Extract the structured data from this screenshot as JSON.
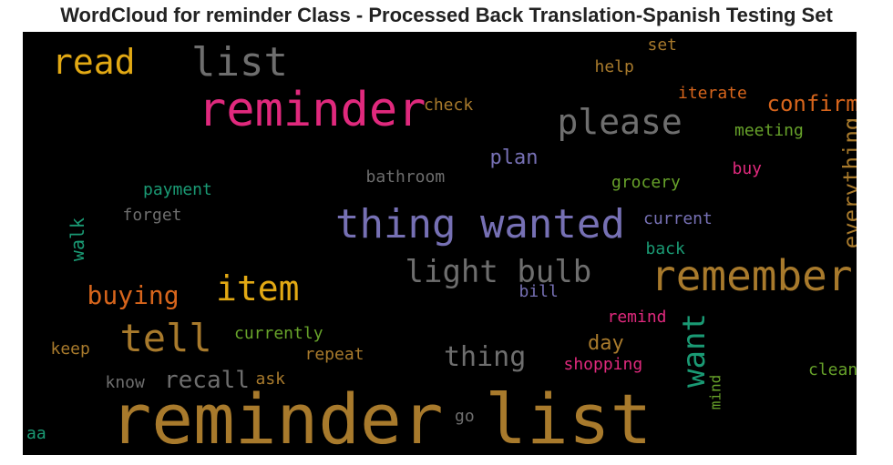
{
  "chart_data": {
    "type": "wordcloud",
    "title": "WordCloud for reminder Class - Processed Back Translation-Spanish Testing Set",
    "colors": {
      "background": "#000000",
      "gold": "#a87a2c",
      "orange": "#d7651c",
      "magenta": "#e0297d",
      "purple": "#7670b4",
      "gray": "#6e6e6e",
      "teal": "#1a9a74",
      "green": "#67a22a",
      "yellow": "#e2a914"
    },
    "words": [
      {
        "text": "reminder list",
        "color": "gold"
      },
      {
        "text": "reminder",
        "color": "magenta"
      },
      {
        "text": "thing wanted",
        "color": "purple"
      },
      {
        "text": "remember",
        "color": "gold"
      },
      {
        "text": "list",
        "color": "gray"
      },
      {
        "text": "read",
        "color": "yellow"
      },
      {
        "text": "please",
        "color": "gray"
      },
      {
        "text": "item",
        "color": "yellow"
      },
      {
        "text": "tell",
        "color": "gold"
      },
      {
        "text": "light bulb",
        "color": "gray"
      },
      {
        "text": "want",
        "color": "teal"
      },
      {
        "text": "buying",
        "color": "orange"
      },
      {
        "text": "thing",
        "color": "gray"
      },
      {
        "text": "recall",
        "color": "gray"
      },
      {
        "text": "everything",
        "color": "gold"
      },
      {
        "text": "confirm",
        "color": "orange"
      },
      {
        "text": "plan",
        "color": "purple"
      },
      {
        "text": "day",
        "color": "gold"
      },
      {
        "text": "iterate",
        "color": "orange"
      },
      {
        "text": "meeting",
        "color": "green"
      },
      {
        "text": "check",
        "color": "gold"
      },
      {
        "text": "help",
        "color": "gold"
      },
      {
        "text": "set",
        "color": "gold"
      },
      {
        "text": "buy",
        "color": "magenta"
      },
      {
        "text": "grocery",
        "color": "green"
      },
      {
        "text": "bathroom",
        "color": "gray"
      },
      {
        "text": "payment",
        "color": "teal"
      },
      {
        "text": "forget",
        "color": "gray"
      },
      {
        "text": "current",
        "color": "purple"
      },
      {
        "text": "walk",
        "color": "teal"
      },
      {
        "text": "back",
        "color": "teal"
      },
      {
        "text": "bill",
        "color": "purple"
      },
      {
        "text": "remind",
        "color": "magenta"
      },
      {
        "text": "currently",
        "color": "green"
      },
      {
        "text": "repeat",
        "color": "gold"
      },
      {
        "text": "shopping",
        "color": "magenta"
      },
      {
        "text": "keep",
        "color": "gold"
      },
      {
        "text": "ask",
        "color": "gold"
      },
      {
        "text": "know",
        "color": "gray"
      },
      {
        "text": "clean",
        "color": "green"
      },
      {
        "text": "mind",
        "color": "green"
      },
      {
        "text": "go",
        "color": "gray"
      },
      {
        "text": "aa",
        "color": "teal"
      }
    ]
  }
}
